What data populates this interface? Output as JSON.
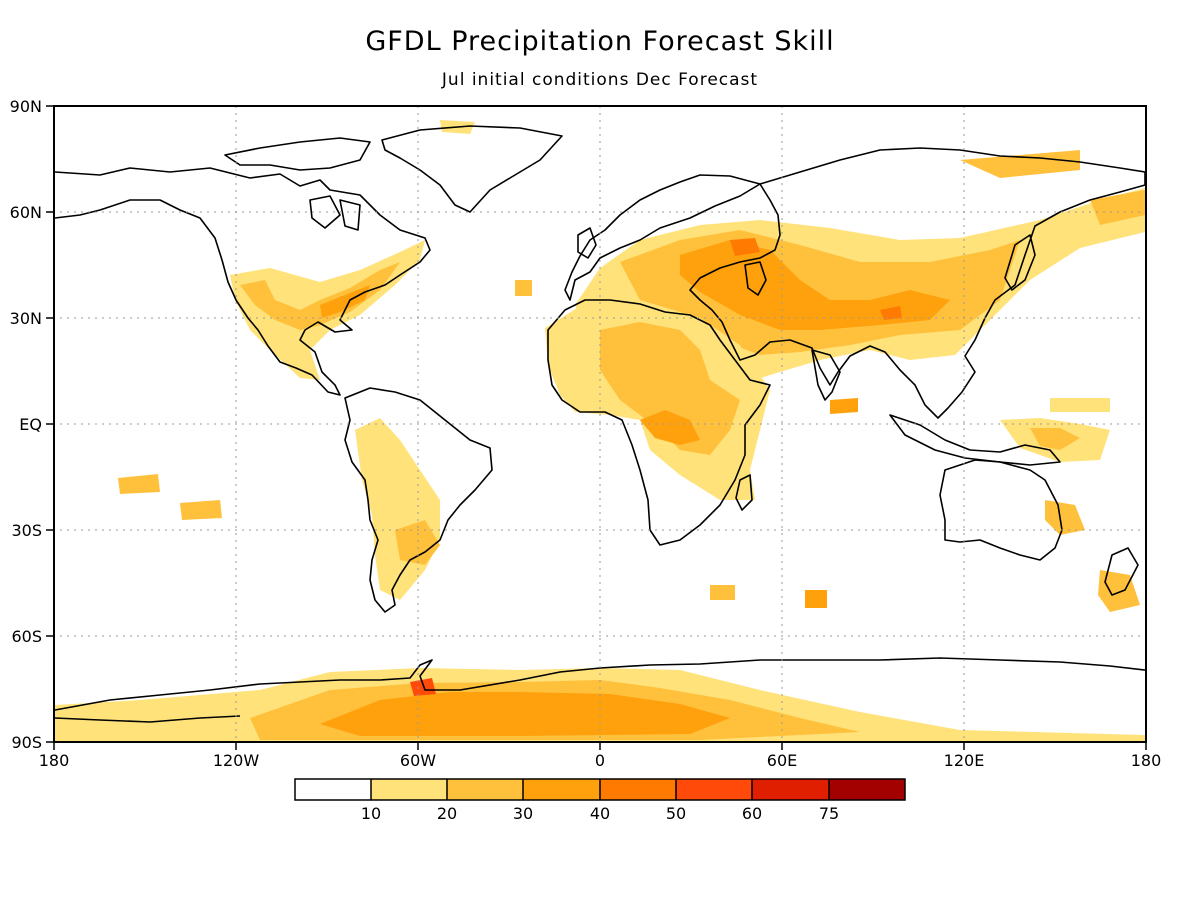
{
  "header": {
    "title": "GFDL Precipitation Forecast Skill",
    "subtitle": "Jul initial conditions   Dec Forecast"
  },
  "map": {
    "lat_labels": [
      "90N",
      "60N",
      "30N",
      "EQ",
      "30S",
      "60S",
      "90S"
    ],
    "lon_labels": [
      "180",
      "120W",
      "60W",
      "0",
      "60E",
      "120E",
      "180"
    ]
  },
  "legend": {
    "boundaries": [
      "10",
      "20",
      "30",
      "40",
      "50",
      "60",
      "75"
    ],
    "colors": [
      "#ffffff",
      "#ffe27a",
      "#ffc03c",
      "#ffa10c",
      "#ff7a00",
      "#ff4a0a",
      "#e01e00",
      "#a30000"
    ]
  },
  "colors": {
    "coast": "#000000",
    "grid": "#9a9a9a",
    "skill_low": "#ffe27a",
    "skill_mid": "#ffc03c",
    "skill_high": "#ffa10c",
    "skill_vhigh": "#ff7a00",
    "skill_max": "#ff4a0a"
  }
}
